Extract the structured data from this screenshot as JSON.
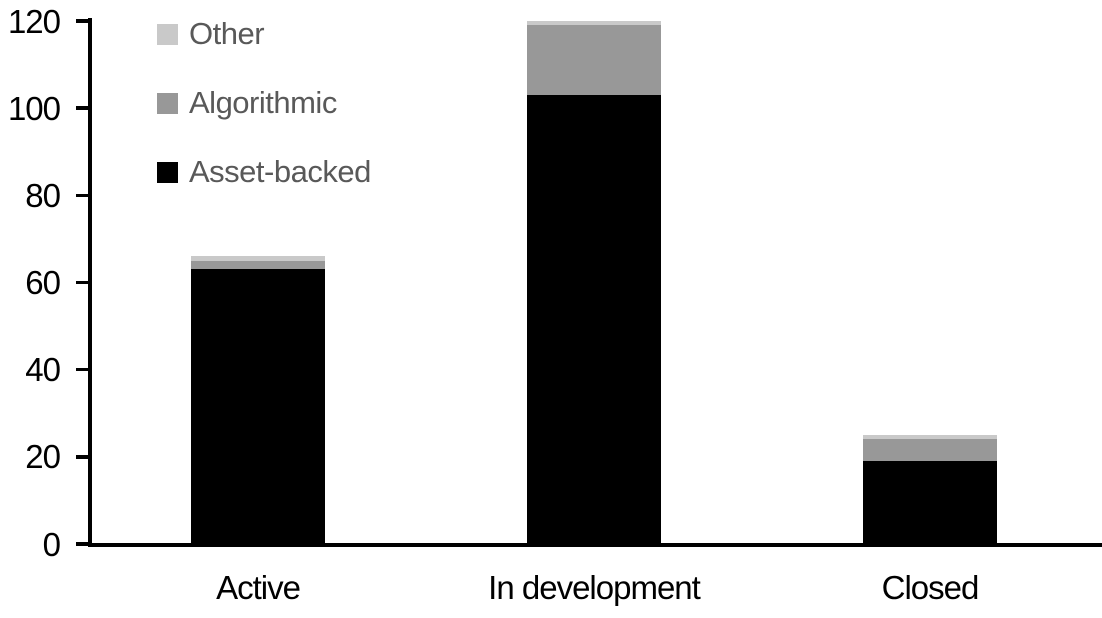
{
  "chart_data": {
    "type": "bar",
    "stacked": true,
    "title": "",
    "xlabel": "",
    "ylabel": "",
    "categories": [
      "Active",
      "In development",
      "Closed"
    ],
    "series": [
      {
        "name": "Asset-backed",
        "color": "#000000",
        "values": [
          63,
          103,
          19
        ]
      },
      {
        "name": "Algorithmic",
        "color": "#989898",
        "values": [
          2,
          16,
          5
        ]
      },
      {
        "name": "Other",
        "color": "#c9c9c9",
        "values": [
          1,
          1,
          1
        ]
      }
    ],
    "stack_totals": [
      66,
      120,
      25
    ],
    "ylim": [
      0,
      120
    ],
    "yticks": [
      0,
      20,
      40,
      60,
      80,
      100,
      120
    ],
    "grid": false,
    "legend": {
      "position": "top-left",
      "order": [
        "Other",
        "Algorithmic",
        "Asset-backed"
      ],
      "text_color": "#595959"
    },
    "axis": {
      "line_color": "#000000",
      "tick_label_color": "#000000",
      "category_label_color": "#000000"
    }
  }
}
